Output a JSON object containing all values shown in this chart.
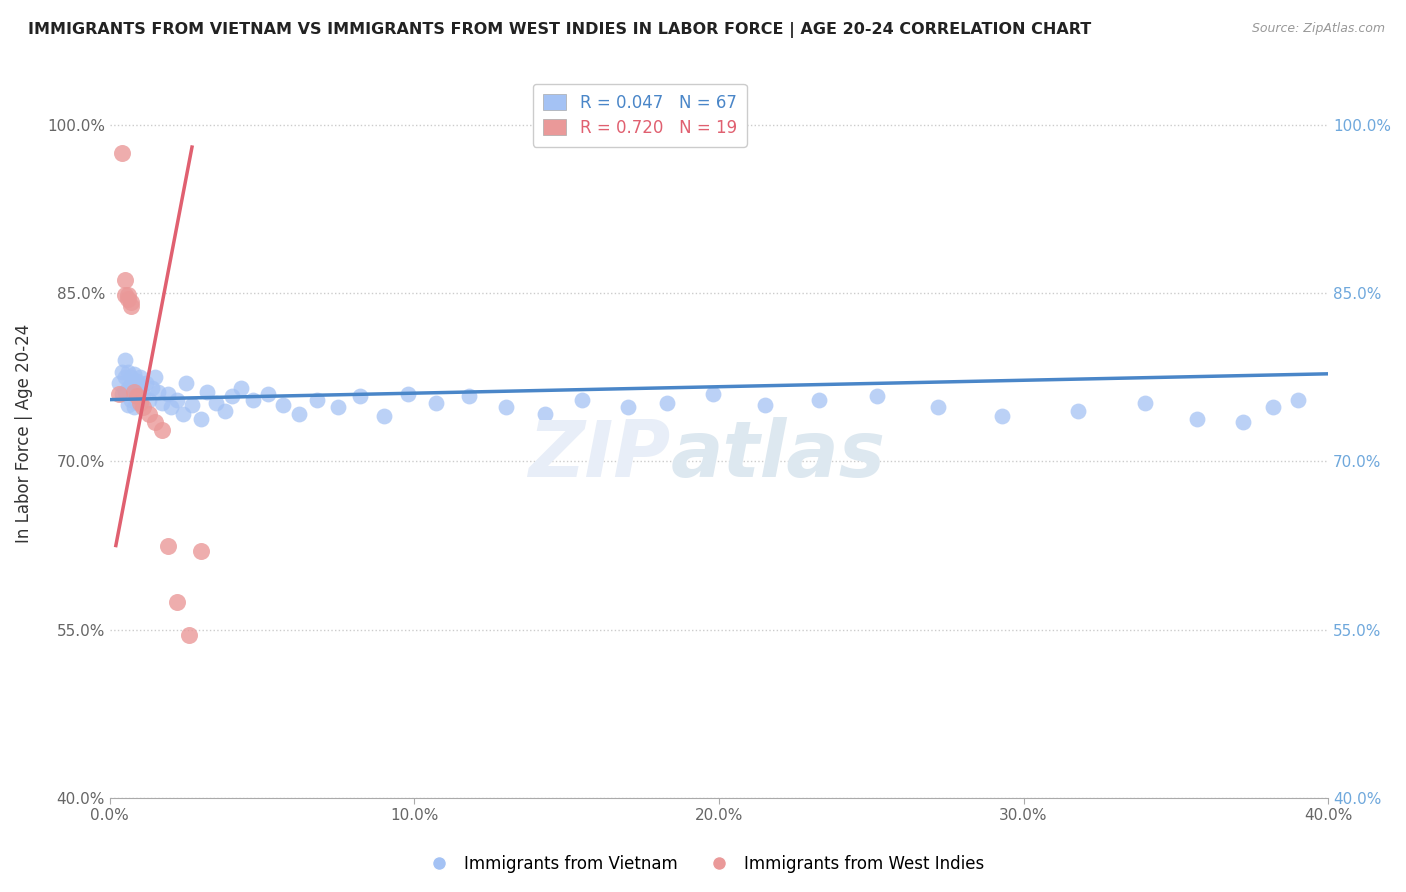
{
  "title": "IMMIGRANTS FROM VIETNAM VS IMMIGRANTS FROM WEST INDIES IN LABOR FORCE | AGE 20-24 CORRELATION CHART",
  "source": "Source: ZipAtlas.com",
  "xlabel": "",
  "ylabel": "In Labor Force | Age 20-24",
  "xlim": [
    0.0,
    0.4
  ],
  "ylim": [
    0.4,
    1.05
  ],
  "yticks": [
    0.4,
    0.55,
    0.7,
    0.85,
    1.0
  ],
  "ytick_labels": [
    "40.0%",
    "55.0%",
    "70.0%",
    "85.0%",
    "100.0%"
  ],
  "xticks": [
    0.0,
    0.1,
    0.2,
    0.3,
    0.4
  ],
  "xtick_labels": [
    "0.0%",
    "10.0%",
    "20.0%",
    "30.0%",
    "40.0%"
  ],
  "blue_R": 0.047,
  "blue_N": 67,
  "pink_R": 0.72,
  "pink_N": 19,
  "blue_color": "#a4c2f4",
  "pink_color": "#ea9999",
  "blue_line_color": "#4a86c8",
  "pink_line_color": "#e06070",
  "legend1_label": "Immigrants from Vietnam",
  "legend2_label": "Immigrants from West Indies",
  "blue_scatter_x": [
    0.003,
    0.004,
    0.004,
    0.005,
    0.005,
    0.005,
    0.006,
    0.006,
    0.006,
    0.007,
    0.007,
    0.007,
    0.008,
    0.008,
    0.008,
    0.009,
    0.009,
    0.009,
    0.01,
    0.01,
    0.011,
    0.012,
    0.013,
    0.014,
    0.015,
    0.016,
    0.017,
    0.019,
    0.02,
    0.022,
    0.024,
    0.025,
    0.027,
    0.03,
    0.032,
    0.035,
    0.038,
    0.04,
    0.043,
    0.047,
    0.052,
    0.057,
    0.062,
    0.068,
    0.075,
    0.082,
    0.09,
    0.098,
    0.107,
    0.118,
    0.13,
    0.143,
    0.155,
    0.17,
    0.183,
    0.198,
    0.215,
    0.233,
    0.252,
    0.272,
    0.293,
    0.318,
    0.34,
    0.357,
    0.372,
    0.382,
    0.39
  ],
  "blue_scatter_y": [
    0.77,
    0.78,
    0.76,
    0.79,
    0.775,
    0.762,
    0.78,
    0.765,
    0.75,
    0.775,
    0.768,
    0.755,
    0.778,
    0.76,
    0.748,
    0.772,
    0.762,
    0.752,
    0.768,
    0.775,
    0.76,
    0.77,
    0.755,
    0.765,
    0.775,
    0.762,
    0.752,
    0.76,
    0.748,
    0.755,
    0.742,
    0.77,
    0.75,
    0.738,
    0.762,
    0.752,
    0.745,
    0.758,
    0.765,
    0.755,
    0.76,
    0.75,
    0.742,
    0.755,
    0.748,
    0.758,
    0.74,
    0.76,
    0.752,
    0.758,
    0.748,
    0.742,
    0.755,
    0.748,
    0.752,
    0.76,
    0.75,
    0.755,
    0.758,
    0.748,
    0.74,
    0.745,
    0.752,
    0.738,
    0.735,
    0.748,
    0.755
  ],
  "pink_scatter_x": [
    0.003,
    0.004,
    0.005,
    0.005,
    0.006,
    0.006,
    0.007,
    0.007,
    0.008,
    0.009,
    0.01,
    0.011,
    0.013,
    0.015,
    0.017,
    0.019,
    0.022,
    0.026,
    0.03
  ],
  "pink_scatter_y": [
    0.76,
    0.975,
    0.862,
    0.848,
    0.848,
    0.845,
    0.842,
    0.838,
    0.762,
    0.758,
    0.752,
    0.748,
    0.742,
    0.735,
    0.728,
    0.625,
    0.575,
    0.545,
    0.62
  ],
  "blue_line_x0": 0.0,
  "blue_line_x1": 0.4,
  "blue_line_y0": 0.755,
  "blue_line_y1": 0.778,
  "pink_line_x0": 0.002,
  "pink_line_x1": 0.027,
  "pink_line_y0": 0.625,
  "pink_line_y1": 0.98
}
